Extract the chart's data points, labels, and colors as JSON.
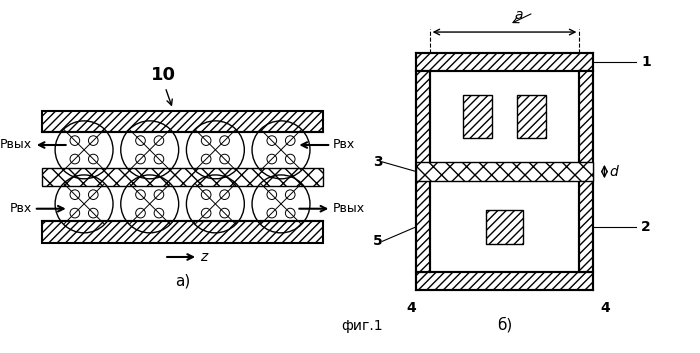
{
  "bg_color": "#ffffff",
  "line_color": "#000000",
  "hatch_color": "#000000",
  "title": "фиг.1",
  "label_a": "а)",
  "label_b": "б)",
  "label_10": "10",
  "label_z": "z",
  "label_pvyx_left": "Pвых",
  "label_pvx_left": "Pвх",
  "label_pvx_right": "Pвх",
  "label_pvyx_right": "Pвых",
  "label_1": "1",
  "label_2": "2",
  "label_3": "3",
  "label_4_bl": "4",
  "label_4_br": "4",
  "label_5": "5",
  "label_a_dim": "a",
  "label_d_dim": "d"
}
